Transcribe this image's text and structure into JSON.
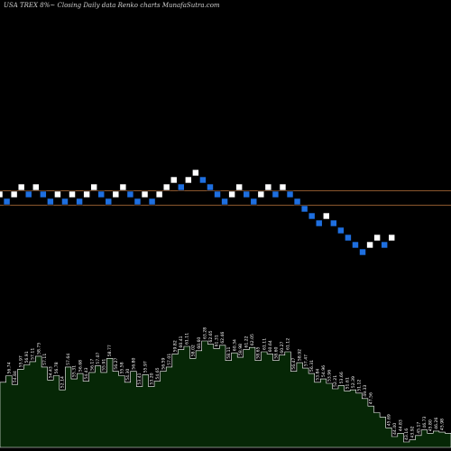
{
  "header": {
    "ticker": "USA TREX",
    "change": "8%~",
    "caption": "Closing Daily data  Renko  charts MunafaSutra.com"
  },
  "colors": {
    "background": "#000000",
    "up_brick": "#ffffff",
    "down_brick": "#1e6fe0",
    "brick_edge": "#000000",
    "ref_line": "#b8733d",
    "volume_fill": "#062706",
    "volume_outline": "#ffffff",
    "volume_label": "#ffffff"
  },
  "chart_data": {
    "type": "renko",
    "bricks": [
      {
        "level": 1,
        "dir": "up"
      },
      {
        "level": 0,
        "dir": "down"
      },
      {
        "level": 1,
        "dir": "up"
      },
      {
        "level": 2,
        "dir": "up"
      },
      {
        "level": 1,
        "dir": "down"
      },
      {
        "level": 2,
        "dir": "up"
      },
      {
        "level": 1,
        "dir": "down"
      },
      {
        "level": 0,
        "dir": "down"
      },
      {
        "level": 1,
        "dir": "up"
      },
      {
        "level": 0,
        "dir": "down"
      },
      {
        "level": 1,
        "dir": "up"
      },
      {
        "level": 0,
        "dir": "down"
      },
      {
        "level": 1,
        "dir": "up"
      },
      {
        "level": 2,
        "dir": "up"
      },
      {
        "level": 1,
        "dir": "down"
      },
      {
        "level": 0,
        "dir": "down"
      },
      {
        "level": 1,
        "dir": "up"
      },
      {
        "level": 2,
        "dir": "up"
      },
      {
        "level": 1,
        "dir": "down"
      },
      {
        "level": 0,
        "dir": "down"
      },
      {
        "level": 1,
        "dir": "up"
      },
      {
        "level": 0,
        "dir": "down"
      },
      {
        "level": 1,
        "dir": "up"
      },
      {
        "level": 2,
        "dir": "up"
      },
      {
        "level": 3,
        "dir": "up"
      },
      {
        "level": 2,
        "dir": "down"
      },
      {
        "level": 3,
        "dir": "up"
      },
      {
        "level": 4,
        "dir": "up"
      },
      {
        "level": 3,
        "dir": "down"
      },
      {
        "level": 2,
        "dir": "down"
      },
      {
        "level": 1,
        "dir": "down"
      },
      {
        "level": 0,
        "dir": "down"
      },
      {
        "level": 1,
        "dir": "up"
      },
      {
        "level": 2,
        "dir": "up"
      },
      {
        "level": 1,
        "dir": "down"
      },
      {
        "level": 0,
        "dir": "down"
      },
      {
        "level": 1,
        "dir": "up"
      },
      {
        "level": 2,
        "dir": "up"
      },
      {
        "level": 1,
        "dir": "down"
      },
      {
        "level": 2,
        "dir": "up"
      },
      {
        "level": 1,
        "dir": "down"
      },
      {
        "level": 0,
        "dir": "down"
      },
      {
        "level": -1,
        "dir": "down"
      },
      {
        "level": -2,
        "dir": "down"
      },
      {
        "level": -3,
        "dir": "down"
      },
      {
        "level": -2,
        "dir": "up"
      },
      {
        "level": -3,
        "dir": "down"
      },
      {
        "level": -4,
        "dir": "down"
      },
      {
        "level": -5,
        "dir": "down"
      },
      {
        "level": -6,
        "dir": "down"
      },
      {
        "level": -7,
        "dir": "down"
      },
      {
        "level": -6,
        "dir": "up"
      },
      {
        "level": -5,
        "dir": "up"
      },
      {
        "level": -6,
        "dir": "down"
      },
      {
        "level": -5,
        "dir": "up"
      }
    ],
    "reference_levels": [
      2,
      0
    ],
    "volume": [
      {
        "label": "",
        "value": 0.6
      },
      {
        "label": "56.74",
        "value": 0.66
      },
      {
        "label": "54.84",
        "value": 0.58
      },
      {
        "label": "55.97",
        "value": 0.72
      },
      {
        "label": "56.91",
        "value": 0.76
      },
      {
        "label": "57.11",
        "value": 0.79
      },
      {
        "label": "58.75",
        "value": 0.84
      },
      {
        "label": "57.11",
        "value": 0.74
      },
      {
        "label": "54.43",
        "value": 0.62
      },
      {
        "label": "56.78",
        "value": 0.66
      },
      {
        "label": "52.14",
        "value": 0.53
      },
      {
        "label": "57.64",
        "value": 0.74
      },
      {
        "label": "55.31",
        "value": 0.63
      },
      {
        "label": "56.68",
        "value": 0.68
      },
      {
        "label": "54.43",
        "value": 0.61
      },
      {
        "label": "56.17",
        "value": 0.69
      },
      {
        "label": "57.07",
        "value": 0.75
      },
      {
        "label": "55.91",
        "value": 0.69
      },
      {
        "label": "58.77",
        "value": 0.82
      },
      {
        "label": "56.27",
        "value": 0.7
      },
      {
        "label": "55.58",
        "value": 0.66
      },
      {
        "label": "54.30",
        "value": 0.6
      },
      {
        "label": "56.80",
        "value": 0.7
      },
      {
        "label": "53.41",
        "value": 0.56
      },
      {
        "label": "55.97",
        "value": 0.67
      },
      {
        "label": "53.20",
        "value": 0.56
      },
      {
        "label": "54.65",
        "value": 0.61
      },
      {
        "label": "56.59",
        "value": 0.7
      },
      {
        "label": "57.01",
        "value": 0.74
      },
      {
        "label": "59.82",
        "value": 0.86
      },
      {
        "label": "60.41",
        "value": 0.9
      },
      {
        "label": "61.11",
        "value": 0.93
      },
      {
        "label": "58.02",
        "value": 0.82
      },
      {
        "label": "60.60",
        "value": 0.89
      },
      {
        "label": "63.28",
        "value": 0.98
      },
      {
        "label": "62.65",
        "value": 0.95
      },
      {
        "label": "61.31",
        "value": 0.91
      },
      {
        "label": "62.46",
        "value": 0.94
      },
      {
        "label": "58.11",
        "value": 0.8
      },
      {
        "label": "60.34",
        "value": 0.87
      },
      {
        "label": "58.98",
        "value": 0.83
      },
      {
        "label": "61.22",
        "value": 0.9
      },
      {
        "label": "62.05",
        "value": 0.92
      },
      {
        "label": "58.65",
        "value": 0.8
      },
      {
        "label": "61.11",
        "value": 0.88
      },
      {
        "label": "60.64",
        "value": 0.86
      },
      {
        "label": "58.60",
        "value": 0.8
      },
      {
        "label": "60.27",
        "value": 0.85
      },
      {
        "label": "61.12",
        "value": 0.88
      },
      {
        "label": "56.47",
        "value": 0.7
      },
      {
        "label": "58.92",
        "value": 0.78
      },
      {
        "label": "57.47",
        "value": 0.73
      },
      {
        "label": "56.31",
        "value": 0.68
      },
      {
        "label": "53.84",
        "value": 0.6
      },
      {
        "label": "54.96",
        "value": 0.63
      },
      {
        "label": "53.96",
        "value": 0.59
      },
      {
        "label": "52.21",
        "value": 0.54
      },
      {
        "label": "53.66",
        "value": 0.57
      },
      {
        "label": "51.61",
        "value": 0.52
      },
      {
        "label": "52.39",
        "value": 0.53
      },
      {
        "label": "51.12",
        "value": 0.5
      },
      {
        "label": "49.33",
        "value": 0.45
      },
      {
        "label": "47.56",
        "value": 0.38
      },
      {
        "label": "",
        "value": 0.32
      },
      {
        "label": "",
        "value": 0.28
      },
      {
        "label": "45.69",
        "value": 0.18
      },
      {
        "label": "44.40",
        "value": 0.1
      },
      {
        "label": "44.83",
        "value": 0.13
      },
      {
        "label": "43.16",
        "value": 0.05
      },
      {
        "label": "43.92",
        "value": 0.07
      },
      {
        "label": "45.17",
        "value": 0.11
      },
      {
        "label": "46.73",
        "value": 0.16
      },
      {
        "label": "45.80",
        "value": 0.13
      },
      {
        "label": "46.26",
        "value": 0.15
      },
      {
        "label": "45.98",
        "value": 0.14
      },
      {
        "label": "",
        "value": 0.13
      }
    ]
  }
}
